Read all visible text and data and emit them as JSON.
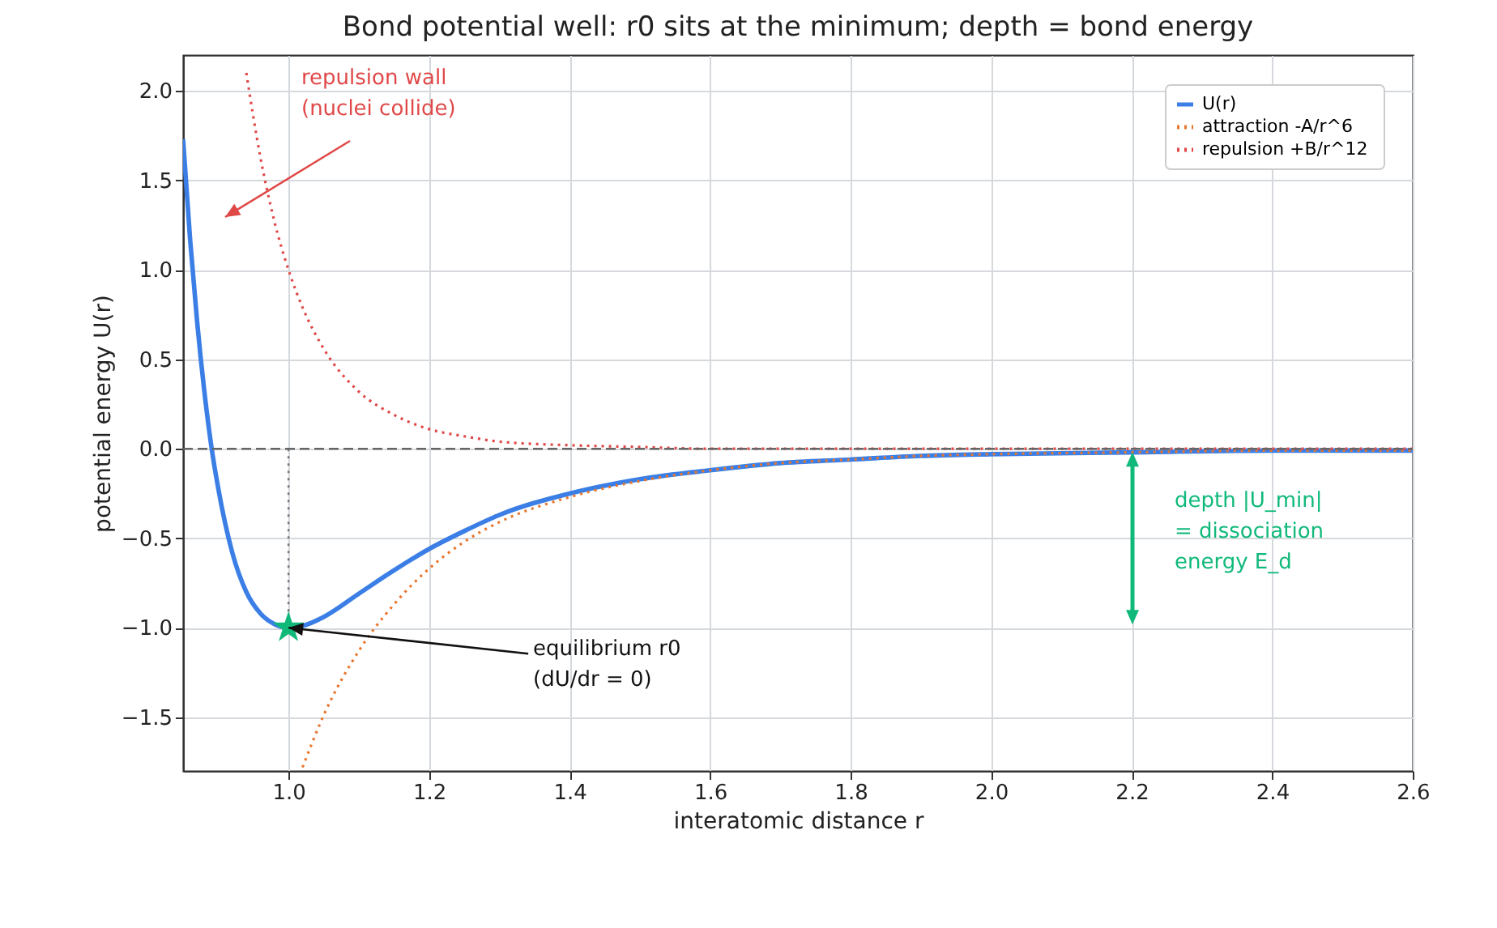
{
  "chart_data": {
    "type": "line",
    "title": "Bond potential well: r0 sits at the minimum; depth = bond energy",
    "xlabel": "interatomic distance  r",
    "ylabel": "potential energy  U(r)",
    "xlim": [
      0.85,
      2.6
    ],
    "ylim": [
      -1.8,
      2.2
    ],
    "xticks": [
      {
        "value": 1,
        "label": "1.0"
      },
      1.2,
      1.4,
      1.6,
      1.8,
      {
        "value": 2,
        "label": "2.0"
      },
      2.2,
      2.4,
      2.6
    ],
    "yticks": [
      {
        "value": -1.5,
        "label": "−1.5"
      },
      {
        "value": -1,
        "label": "−1.0"
      },
      {
        "value": -0.5,
        "label": "−0.5"
      },
      {
        "value": 0,
        "label": "0.0"
      },
      0.5,
      {
        "value": 1,
        "label": "1.0"
      },
      1.5,
      {
        "value": 2,
        "label": "2.0"
      }
    ],
    "grid": true,
    "legend": "top right",
    "series": [
      {
        "name": "U(r)",
        "color": "#3b7fe6",
        "line_style": "solid",
        "x": [
          0.85,
          0.86,
          0.87,
          0.88,
          0.89,
          0.9,
          0.92,
          0.94,
          0.96,
          0.98,
          1.0,
          1.02,
          1.05,
          1.1,
          1.15,
          1.2,
          1.25,
          1.3,
          1.4,
          1.5,
          1.6,
          1.7,
          1.8,
          1.9,
          2.0,
          2.2,
          2.4,
          2.6
        ],
        "values": [
          1.73,
          1.17,
          0.71,
          0.33,
          0.02,
          -0.22,
          -0.58,
          -0.8,
          -0.92,
          -0.98,
          -1.0,
          -0.99,
          -0.94,
          -0.81,
          -0.68,
          -0.56,
          -0.46,
          -0.37,
          -0.25,
          -0.17,
          -0.12,
          -0.08,
          -0.06,
          -0.04,
          -0.03,
          -0.02,
          -0.01,
          -0.01
        ]
      },
      {
        "name": "attraction  -A/r^6",
        "color": "#e8772e",
        "line_style": "dotted",
        "x": [
          1.02,
          1.05,
          1.1,
          1.15,
          1.2,
          1.25,
          1.3,
          1.4,
          1.5,
          1.6,
          1.7,
          1.8,
          1.9,
          2.0,
          2.2,
          2.4,
          2.6
        ],
        "values": [
          -1.78,
          -1.49,
          -1.13,
          -0.87,
          -0.67,
          -0.52,
          -0.41,
          -0.27,
          -0.18,
          -0.12,
          -0.08,
          -0.06,
          -0.04,
          -0.03,
          -0.02,
          -0.01,
          -0.01
        ]
      },
      {
        "name": "repulsion  +B/r^12",
        "color": "#e04848",
        "line_style": "dotted",
        "x": [
          0.94,
          0.96,
          0.98,
          1.0,
          1.02,
          1.05,
          1.1,
          1.15,
          1.2,
          1.25,
          1.3,
          1.4,
          1.5,
          1.6,
          1.8,
          2.0,
          2.6
        ],
        "values": [
          2.1,
          1.63,
          1.27,
          1.0,
          0.79,
          0.56,
          0.32,
          0.19,
          0.11,
          0.07,
          0.04,
          0.02,
          0.01,
          0.0,
          0.0,
          0.0,
          0.0
        ]
      },
      {
        "color": "#777777",
        "line_style": "dotted",
        "x": [
          1.0,
          1.0
        ],
        "values": [
          0.0,
          -1.0
        ]
      },
      {
        "type": "scatter",
        "marker": "star",
        "color": "#10b97a",
        "x": [
          1.0
        ],
        "values": [
          -1.0
        ]
      }
    ],
    "ref_lines": [
      {
        "axis": "y",
        "value": 0.0,
        "color": "#666666",
        "line_style": "dashed"
      }
    ],
    "annotations": [
      "repulsion wall\n(nuclei collide)",
      {
        "text": "equilibrium r0\n(dU/dr = 0)",
        "x": 1.0,
        "y": -1.0
      },
      "depth |U_min|\n= dissociation\nenergy E_d"
    ]
  }
}
